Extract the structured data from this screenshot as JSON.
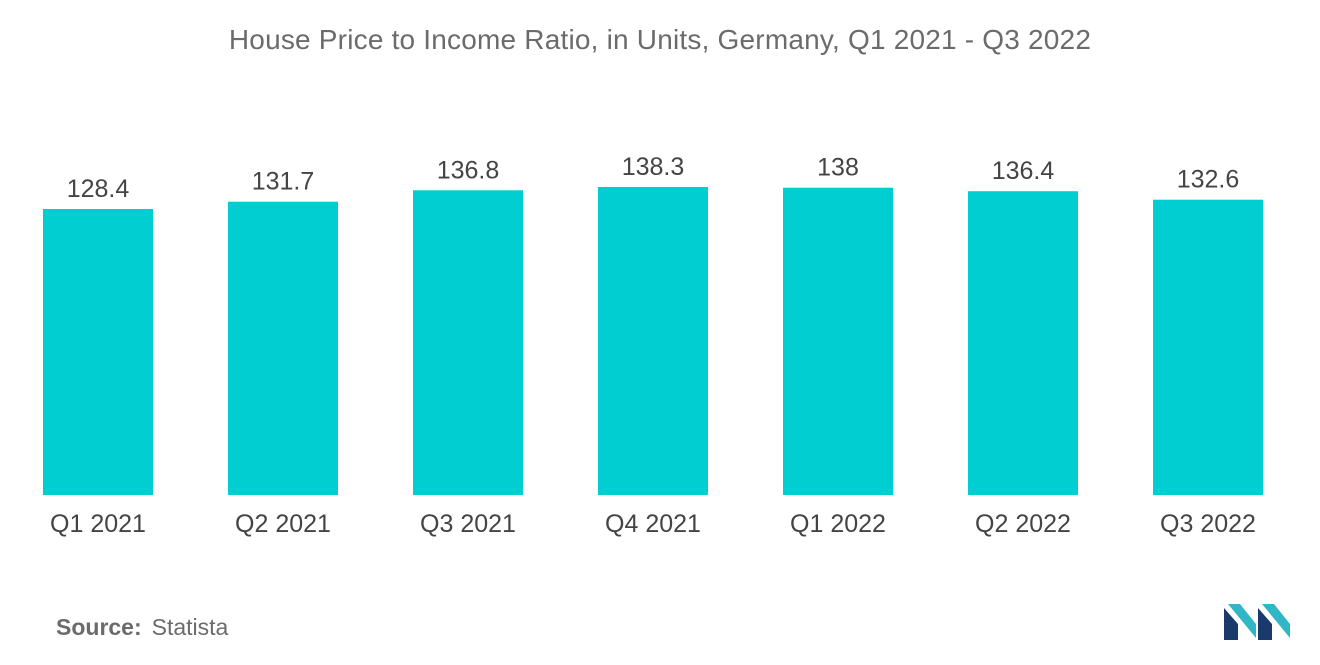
{
  "chart_data": {
    "type": "bar",
    "title": "House Price to Income Ratio, in Units, Germany, Q1 2021 - Q3 2022",
    "categories": [
      "Q1 2021",
      "Q2 2021",
      "Q3 2021",
      "Q4 2021",
      "Q1 2022",
      "Q2 2022",
      "Q3 2022"
    ],
    "values": [
      128.4,
      131.7,
      136.8,
      138.3,
      138,
      136.4,
      132.6
    ],
    "value_labels": [
      "128.4",
      "131.7",
      "136.8",
      "138.3",
      "138",
      "136.4",
      "132.6"
    ],
    "xlabel": "",
    "ylabel": "",
    "ylim": [
      0,
      138.3
    ],
    "grid": false,
    "legend": "none",
    "bar_color": "#00CED1"
  },
  "footer": {
    "source_key": "Source:",
    "source_value": "Statista"
  },
  "brand": {
    "logo_icon": "mordor-intelligence-logo-icon",
    "logo_colors": [
      "#1a3a6b",
      "#2fb7c6"
    ]
  }
}
